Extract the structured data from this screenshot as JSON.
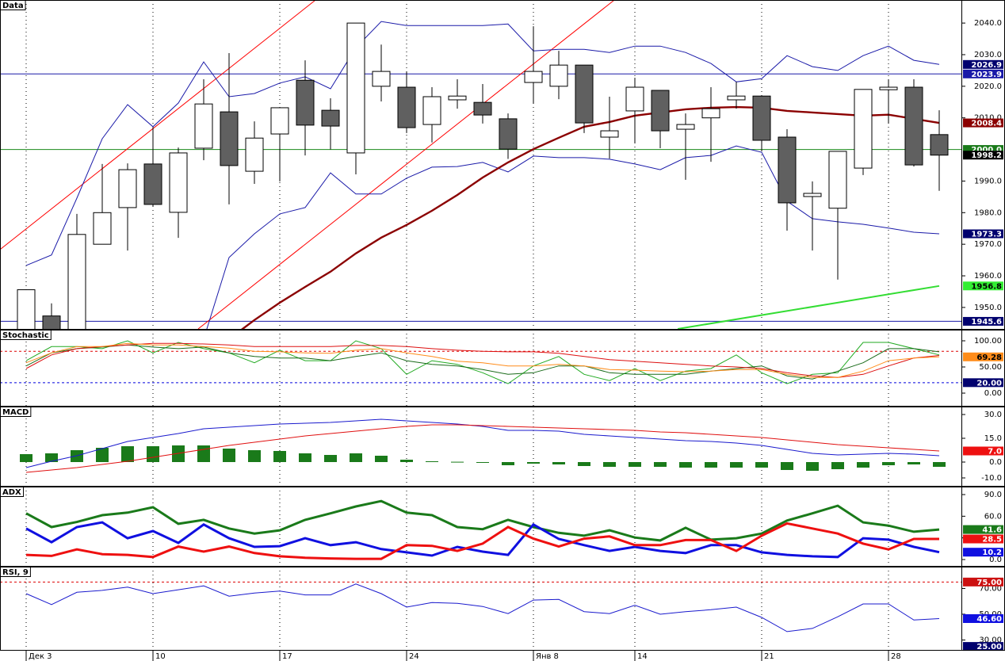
{
  "chart_data": [
    {
      "type": "candlestick",
      "title": "Data",
      "categories": [
        "Дек 3",
        null,
        null,
        null,
        null,
        "10",
        null,
        null,
        null,
        null,
        "17",
        null,
        null,
        null,
        null,
        "24",
        null,
        null,
        null,
        null,
        "Янв 8",
        null,
        null,
        null,
        "14",
        null,
        null,
        null,
        null,
        "21",
        null,
        null,
        null,
        null,
        "28",
        null,
        null
      ],
      "open": [
        1942,
        1947.3,
        1943,
        1970,
        1981.6,
        1995.4,
        1980.1,
        2000.4,
        2011.9,
        1993.1,
        2004.9,
        2021.9,
        2012.4,
        1998.9,
        2020,
        2019.7,
        2007.9,
        2015.7,
        2014.9,
        2009.7,
        2021.2,
        2020,
        2026.7,
        2003.9,
        2012.2,
        2018.7,
        2006.4,
        2010,
        2015.7,
        2016.9,
        2003.9,
        1985.1,
        1981.4,
        1994.1,
        2018.9,
        2019.7,
        2004.7
      ],
      "high": [
        1955.6,
        1951.3,
        1979.6,
        1995.4,
        1995.6,
        2007,
        2000.6,
        2022.2,
        2030.5,
        2008.9,
        2013.2,
        2028.2,
        2016.2,
        2040,
        2033.2,
        2024.7,
        2019.7,
        2022.2,
        2020.7,
        2011.4,
        2039,
        2031.2,
        2026.7,
        2016.7,
        2022.7,
        2018.7,
        2011.4,
        2019.7,
        2021.4,
        2016.9,
        2006.4,
        1989.9,
        1999.4,
        2019,
        2022.2,
        2022.2,
        2012.4
      ],
      "low": [
        1940,
        1940,
        1940,
        1970,
        1968,
        1982,
        1972,
        1996.6,
        1982.6,
        1989.1,
        1989.9,
        1998.1,
        2000,
        1992.1,
        2015.2,
        2005.2,
        2002.2,
        2012.9,
        2008.2,
        1997,
        2014.7,
        2015.9,
        2005.2,
        1997.1,
        2001.9,
        2000.4,
        1990.4,
        1996.1,
        2012.9,
        1999.6,
        1974.3,
        1968,
        1958.8,
        1991.9,
        2008.4,
        1994.6,
        1986.9
      ],
      "close": [
        1955.6,
        1943,
        1973.1,
        1980,
        1993.6,
        1982.6,
        1998.9,
        2014.4,
        1994.9,
        2003.6,
        2013.2,
        2007.7,
        2007.4,
        2040,
        2024.7,
        2006.9,
        2016.7,
        2016.9,
        2010.9,
        2000.1,
        2024.7,
        2026.7,
        2008.4,
        2005.9,
        2019.7,
        2005.9,
        2007.9,
        2012.9,
        2016.9,
        2002.9,
        1983.1,
        1986.1,
        1999.4,
        2019,
        2019.7,
        1995.1,
        1998.2
      ],
      "up_color": "#ffffff",
      "down_color": "#606060",
      "series": [
        {
          "color": "#1a1aa8",
          "values": [
            1963.3,
            1966.6,
            1984.6,
            2003.4,
            2014.2,
            2007.2,
            2014.7,
            2027.7,
            2016.7,
            2017.7,
            2021,
            2023,
            2019.2,
            2032.2,
            2040.5,
            2039.2,
            2039.2,
            2039.2,
            2039.2,
            2039.7,
            2031.2,
            2031.7,
            2031.7,
            2030.7,
            2032.7,
            2032.7,
            2030.7,
            2027.2,
            2021.4,
            2022.4,
            2029.7,
            2026.2,
            2025,
            2029.7,
            2032.7,
            2028.2,
            2026.9
          ]
        },
        {
          "color": "#1a1aa8",
          "values": [
            null,
            null,
            null,
            null,
            null,
            null,
            null,
            1940,
            1965.8,
            1973.3,
            1979.6,
            1981.6,
            1992.6,
            1985.9,
            1985.9,
            1990.9,
            1994.4,
            1994.6,
            1995.9,
            1992.9,
            1997.9,
            1997.4,
            1997.4,
            1996.9,
            1995.4,
            1993.6,
            1997.4,
            1998.1,
            2001.1,
            1999.1,
            1983.6,
            1978.1,
            1977.1,
            1976.3,
            1975.1,
            1973.8,
            1973.3
          ]
        },
        {
          "color": "#8b0000",
          "values": [
            null,
            null,
            null,
            null,
            null,
            null,
            null,
            null,
            1940,
            1946,
            1951.5,
            1956.5,
            1961.3,
            1967.1,
            1972.1,
            1976.1,
            1980.6,
            1985.6,
            1991.1,
            1995.9,
            2000.1,
            2003.7,
            2007.2,
            2008.7,
            2010.7,
            2011.7,
            2012.7,
            2013.2,
            2013.4,
            2013.2,
            2012.2,
            2011.7,
            2011.2,
            2010.7,
            2011,
            2009.7,
            2008.4
          ]
        }
      ],
      "trendlines": [
        {
          "color": "#ff0000",
          "x": [
            -1.03,
            11.41
          ],
          "values": [
            1968.3,
            2047.3
          ]
        },
        {
          "color": "#ff0000",
          "x": [
            6.78,
            23.19
          ],
          "values": [
            1943.2,
            2047.3
          ]
        },
        {
          "color": "#33dd33",
          "x": [
            25.69,
            36
          ],
          "values": [
            1943.2,
            1956.8
          ]
        }
      ],
      "hlines": [
        {
          "value": 2023.9,
          "color": "#1a1aa8"
        },
        {
          "value": 2000,
          "color": "#1a8a1a"
        },
        {
          "value": 1945.6,
          "color": "#1a1aa8"
        }
      ],
      "markers": [
        {
          "value": 2026.9,
          "color": "#00006e",
          "text_color": "#ffffff"
        },
        {
          "value": 2023.9,
          "color": "#1a1aa8",
          "text_color": "#ffffff"
        },
        {
          "value": 2008.4,
          "color": "#8b0000",
          "text_color": "#ffffff"
        },
        {
          "value": 2000,
          "label": "2000.0",
          "color": "#1a7a1a",
          "text_color": "#ffffff"
        },
        {
          "value": 1998.2,
          "color": "#000000",
          "text_color": "#ffffff"
        },
        {
          "value": 1973.3,
          "color": "#00006e",
          "text_color": "#ffffff"
        },
        {
          "value": 1956.8,
          "color": "#33ee33",
          "text_color": "#000000"
        },
        {
          "value": 1945.6,
          "color": "#00006e",
          "text_color": "#ffffff"
        }
      ],
      "ylim": [
        1943.2,
        2047.3
      ],
      "yticks": [
        {
          "value": 1950,
          "label": "1950.0"
        },
        {
          "value": 1960,
          "label": "1960.0"
        },
        {
          "value": 1970,
          "label": "1970.0"
        },
        {
          "value": 1980,
          "label": "1980.0"
        },
        {
          "value": 1990,
          "label": "1990.0"
        },
        {
          "value": 2010,
          "label": "2010.0"
        },
        {
          "value": 2020,
          "label": "2020.0"
        },
        {
          "value": 2030,
          "label": "2030.0"
        },
        {
          "value": 2040,
          "label": "2040.0"
        }
      ]
    },
    {
      "type": "line",
      "title": "Stochastic",
      "series": [
        {
          "color": "#22aa22",
          "values": [
            62,
            89,
            89,
            85,
            100,
            77,
            97,
            85,
            77,
            58,
            82,
            62,
            62,
            100,
            85,
            36,
            62,
            55,
            39,
            18,
            52,
            70,
            36,
            24,
            47,
            24,
            42,
            47,
            73,
            39,
            18,
            36,
            39,
            97,
            97,
            85,
            73
          ]
        },
        {
          "color": "#1a6b1a",
          "values": [
            52,
            77,
            85,
            88,
            92,
            88,
            85,
            88,
            77,
            70,
            67,
            67,
            62,
            70,
            77,
            62,
            55,
            52,
            45,
            36,
            39,
            52,
            52,
            39,
            36,
            36,
            36,
            42,
            47,
            52,
            33,
            27,
            42,
            58,
            85,
            85,
            79
          ]
        },
        {
          "color": "#dd1010",
          "values": [
            47,
            73,
            85,
            89,
            92,
            95,
            95,
            94,
            92,
            89,
            89,
            89,
            89,
            91,
            91,
            89,
            85,
            82,
            80,
            79,
            79,
            76,
            70,
            64,
            61,
            58,
            55,
            52,
            50,
            47,
            39,
            33,
            30,
            36,
            52,
            67,
            72
          ]
        },
        {
          "color": "#ff8c1a",
          "values": [
            58,
            77,
            89,
            89,
            95,
            92,
            92,
            89,
            86,
            80,
            79,
            77,
            76,
            82,
            85,
            77,
            70,
            61,
            58,
            52,
            52,
            55,
            52,
            45,
            44,
            42,
            41,
            42,
            45,
            45,
            36,
            30,
            30,
            42,
            62,
            67,
            69.28
          ]
        }
      ],
      "hlines": [
        {
          "value": 80,
          "color": "#dd0000",
          "dashed": true
        },
        {
          "value": 20,
          "color": "#0000dd",
          "dashed": true
        }
      ],
      "markers": [
        {
          "value": 69.28,
          "color": "#ff8c1a",
          "text_color": "#000000"
        },
        {
          "value": 20,
          "label": "20.00",
          "color": "#00006e",
          "text_color": "#ffffff"
        }
      ],
      "ylim": [
        -24.2,
        121.2
      ],
      "yticks": [
        {
          "value": 0,
          "label": "0.00"
        },
        {
          "value": 50,
          "label": "50.00"
        },
        {
          "value": 100,
          "label": "100.00"
        }
      ]
    },
    {
      "type": "line",
      "title": "MACD",
      "series": [
        {
          "type": "bar",
          "color": "#1a7a1a",
          "values": [
            5,
            5.5,
            7.5,
            9,
            10,
            10,
            10.5,
            10.5,
            8.5,
            7.5,
            7,
            5.5,
            4.5,
            5.5,
            4,
            1.5,
            0.5,
            0.2,
            0,
            -2,
            -1,
            -1.5,
            -2.5,
            -3,
            -3,
            -3,
            -3.5,
            -3.5,
            -3.5,
            -3.5,
            -5,
            -5.5,
            -4.5,
            -3.5,
            -2,
            -1.5,
            -3
          ]
        },
        {
          "color": "#1a1acd",
          "values": [
            -3.5,
            0.5,
            4,
            8.5,
            13,
            15.5,
            18,
            21,
            22,
            23,
            24,
            24.5,
            25,
            26,
            27,
            26,
            25,
            24,
            22.5,
            20,
            20,
            19.5,
            17.5,
            16.5,
            15.5,
            14.5,
            13.5,
            13,
            12,
            10.5,
            8,
            5.5,
            4.5,
            5,
            5.5,
            5,
            4
          ]
        },
        {
          "color": "#e01010",
          "values": [
            -6.5,
            -5,
            -3.5,
            -1.5,
            0.5,
            3,
            5.5,
            8,
            10.5,
            12.5,
            14.5,
            16.5,
            18,
            19.5,
            21,
            22.5,
            23.5,
            23.5,
            23,
            22.5,
            22,
            21.5,
            21,
            20.5,
            20,
            19,
            18.5,
            17.5,
            16.5,
            15.5,
            14,
            12.5,
            11,
            10,
            9,
            8,
            7
          ]
        }
      ],
      "markers": [
        {
          "value": 7,
          "label": "7.0",
          "color": "#ee1010",
          "text_color": "#ffffff"
        }
      ],
      "ylim": [
        -15,
        35
      ],
      "yticks": [
        {
          "value": -10,
          "label": "-10.0"
        },
        {
          "value": 0,
          "label": "0.0"
        },
        {
          "value": 15,
          "label": "15.0"
        },
        {
          "value": 30,
          "label": "30.0"
        }
      ]
    },
    {
      "type": "line",
      "title": "ADX",
      "series": [
        {
          "color": "#1a7a1a",
          "values": [
            64,
            45,
            52,
            61.5,
            65,
            72.5,
            49.5,
            55,
            43,
            36,
            40.5,
            55,
            64,
            73.5,
            81,
            65,
            61.5,
            45,
            42,
            55,
            45,
            37,
            33,
            40.5,
            30.5,
            26.5,
            44,
            27.5,
            29.5,
            36,
            54,
            64,
            74.5,
            51.5,
            47,
            38.5,
            41.6
          ]
        },
        {
          "color": "#1010e0",
          "values": [
            43,
            24,
            45,
            51.5,
            29.5,
            39.5,
            23,
            48.5,
            29.5,
            17.5,
            18.5,
            29.5,
            20,
            24,
            14.5,
            10,
            5.5,
            17.5,
            11,
            6.5,
            48.5,
            28.5,
            20,
            12,
            17.5,
            12,
            9,
            20,
            20,
            10,
            6.5,
            4.5,
            3.5,
            29.5,
            27.5,
            17.5,
            10.2
          ]
        },
        {
          "color": "#ee1010",
          "values": [
            6.5,
            5,
            14,
            7.5,
            6.5,
            3.5,
            18,
            11,
            18,
            9,
            4.5,
            2.5,
            1.5,
            1,
            1,
            20,
            19,
            12,
            22,
            45,
            29,
            18,
            29,
            32,
            20,
            20,
            27,
            27,
            12,
            33,
            50,
            43,
            36,
            22,
            14,
            28.5,
            28.5
          ]
        }
      ],
      "markers": [
        {
          "value": 41.6,
          "color": "#1a7a1a",
          "text_color": "#ffffff"
        },
        {
          "value": 28.5,
          "color": "#ee1010",
          "text_color": "#ffffff"
        },
        {
          "value": 10.2,
          "color": "#1010e0",
          "text_color": "#ffffff"
        }
      ],
      "ylim": [
        -8.8,
        101
      ],
      "yticks": [
        {
          "value": 0,
          "label": "0.0"
        },
        {
          "value": 30,
          "label": "30.0"
        },
        {
          "value": 60,
          "label": "60.0"
        },
        {
          "value": 90,
          "label": "90.0"
        }
      ]
    },
    {
      "type": "line",
      "title": "RSI, 9",
      "series": [
        {
          "color": "#1a1acd",
          "values": [
            66,
            57.5,
            67,
            68.5,
            71,
            66,
            69,
            72,
            64,
            66.5,
            68,
            65,
            65,
            73.5,
            66,
            55.5,
            59,
            58.5,
            56,
            50.5,
            61,
            61.5,
            52,
            50.5,
            57,
            50,
            52,
            53.5,
            55.5,
            47.5,
            36.5,
            39,
            48,
            58,
            58,
            45.5,
            46.6
          ]
        }
      ],
      "hlines": [
        {
          "value": 75,
          "color": "#dd0000",
          "dashed": true
        }
      ],
      "markers": [
        {
          "value": 75,
          "label": "75.00",
          "color": "#cc1010",
          "text_color": "#ffffff"
        },
        {
          "value": 46.6,
          "label": "46.60",
          "color": "#1010e0",
          "text_color": "#ffffff"
        },
        {
          "value": 25,
          "label": "25.00",
          "color": "#00006e",
          "text_color": "#ffffff"
        }
      ],
      "ylim": [
        22.3,
        86.9
      ],
      "yticks": [
        {
          "value": 30,
          "label": "30.00"
        },
        {
          "value": 50,
          "label": "50.00"
        },
        {
          "value": 70,
          "label": "70.00"
        }
      ]
    }
  ]
}
